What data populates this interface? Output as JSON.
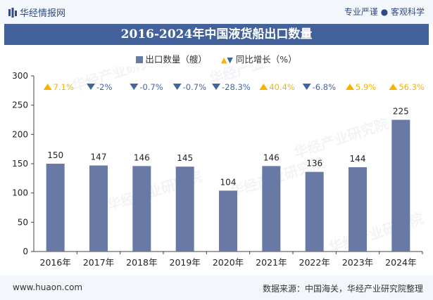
{
  "header": {
    "brand": "华经情报网",
    "tagline": "专业严谨 ● 客观科学"
  },
  "chart_data": {
    "type": "bar",
    "title": "2016-2024年中国液货船出口数量",
    "categories": [
      "2016年",
      "2017年",
      "2018年",
      "2019年",
      "2020年",
      "2021年",
      "2022年",
      "2023年",
      "2024年"
    ],
    "series": [
      {
        "name": "出口数量（艘）",
        "values": [
          150,
          147,
          146,
          145,
          104,
          146,
          136,
          144,
          225
        ]
      }
    ],
    "growth": {
      "name": "同比增长（%）",
      "values": [
        "7.1%",
        "-2%",
        "-0.7%",
        "-0.7%",
        "-28.3%",
        "40.4%",
        "-6.8%",
        "5.9%",
        "56.3%"
      ],
      "direction": [
        "up",
        "down",
        "down",
        "down",
        "down",
        "up",
        "down",
        "up",
        "up"
      ]
    },
    "ylim": [
      0,
      300
    ],
    "yticks": [
      0,
      50,
      100,
      150,
      200,
      250,
      300
    ],
    "grid": false,
    "legend_position": "top",
    "colors": {
      "bar": "#6879a6",
      "up": "#f4b400",
      "down": "#40669e"
    }
  },
  "watermark": "华经产业研究院",
  "footer": {
    "site": "www.huaon.com",
    "source": "数据来源：中国海关，华经产业研究院整理"
  }
}
